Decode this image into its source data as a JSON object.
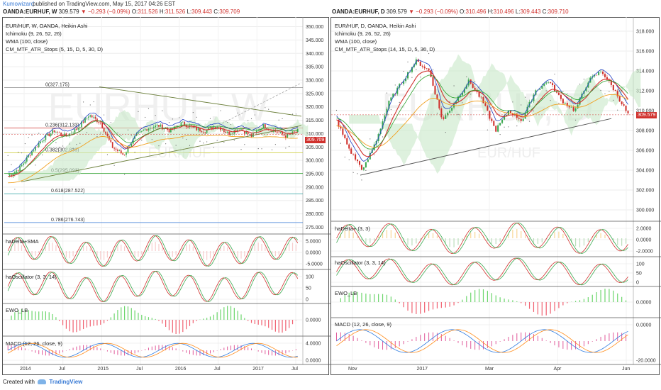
{
  "header": {
    "author": "Kumowizard",
    "published": "published on TradingView.com, May 15, 2017 04:26 EST"
  },
  "footer": {
    "created_with": "Created with",
    "brand": "TradingView"
  },
  "colors": {
    "up": "#3aa84f",
    "down": "#d0312d",
    "kijun": "#d0312d",
    "tenkan": "#1f3fc4",
    "wma": "#f0a020",
    "cloud_up": "#c8e8c8",
    "cloud_down": "#f5d6d6",
    "green_line": "#2aa02a",
    "orange_line": "#ff8c1a",
    "macd_line": "#2d7be0"
  },
  "left": {
    "quote": {
      "symbol": "OANDA:EURHUF, W",
      "last": "309.579",
      "change": "−0.293 (−0.09%)",
      "o_label": "O:",
      "o": "311.526",
      "h_label": "H:",
      "h": "311.526",
      "l_label": "L:",
      "l": "309.443",
      "c_label": "C:",
      "c": "309.709"
    },
    "legend": [
      "EUR/HUF, W, OANDA, Heikin Ashi",
      "Ichimoku (9, 26, 52, 26)",
      "WMA (100, close)",
      "CM_MTF_ATR_Stops (5, 15, D, 5, 30, D)"
    ],
    "watermark": "EURHUF, W",
    "watermark_sub": "EUR/HUF",
    "price_tag": "309.709",
    "fib_levels": [
      {
        "label": "0(327.175)",
        "price": 327.175,
        "color": "#888888"
      },
      {
        "label": "0.236(312.133)",
        "price": 312.133,
        "color": "#d0312d"
      },
      {
        "label": "0.382(302.833)",
        "price": 302.833,
        "color": "#c9c92a"
      },
      {
        "label": "0.5(295.093)",
        "price": 295.093,
        "color": "#2aa02a"
      },
      {
        "label": "0.618(287.522)",
        "price": 287.522,
        "color": "#2aa0a0"
      },
      {
        "label": "0.786(276.743)",
        "price": 276.743,
        "color": "#3a7bd5"
      }
    ],
    "price_axis": {
      "ticks": [
        "350.000",
        "345.000",
        "340.000",
        "335.000",
        "330.000",
        "325.000",
        "320.000",
        "315.000",
        "310.000",
        "305.000",
        "300.000",
        "295.000",
        "290.000",
        "285.000",
        "280.000",
        "275.000"
      ]
    },
    "time_axis": [
      "2014",
      "Jul",
      "2015",
      "Jul",
      "2016",
      "Jul",
      "2017",
      "Jul"
    ],
    "indicators": [
      {
        "label": "haDelta+SMA",
        "ticks": [
          "5.0000",
          "0.0000",
          "-5.0000"
        ]
      },
      {
        "label": "haOscillator (3, 3, 14)",
        "ticks": [
          "100",
          "50",
          "0"
        ]
      },
      {
        "label": "EWO_LB",
        "ticks": [
          "0.0000"
        ]
      },
      {
        "label": "MACD (12, 26, close, 9)",
        "ticks": [
          "4.0000",
          "0.0000"
        ]
      }
    ]
  },
  "right": {
    "quote": {
      "symbol": "OANDA:EURHUF, D",
      "last": "309.579",
      "change": "−0.293 (−0.09%)",
      "o_label": "O:",
      "o": "310.496",
      "h_label": "H:",
      "h": "310.496",
      "l_label": "L:",
      "l": "309.443",
      "c_label": "C:",
      "c": "309.710"
    },
    "legend": [
      "EUR/HUF, D, OANDA, Heikin Ashi",
      "Ichimoku (9, 26, 52, 26)",
      "WMA (100, close)",
      "CM_MTF_ATR_Stops (14, 15, D, 5, 30, D)"
    ],
    "watermark": "EURHUF, D",
    "watermark_sub": "EUR/HUF",
    "price_tag": "309.579",
    "price_axis": {
      "ticks": [
        "318.000",
        "316.000",
        "314.000",
        "312.000",
        "310.000",
        "308.000",
        "306.000",
        "304.000",
        "302.000",
        "300.000"
      ]
    },
    "time_axis": [
      "Nov",
      "2017",
      "Mar",
      "Apr",
      "Jun"
    ],
    "indicators": [
      {
        "label": "haDelta+ (3, 3)",
        "ticks": [
          "2.0000",
          "0.0000",
          "-2.0000"
        ]
      },
      {
        "label": "haOscillator (3, 3, 14)",
        "ticks": [
          "100",
          "50",
          "0"
        ]
      },
      {
        "label": "EWO_LB",
        "ticks": [
          "0.0000"
        ]
      },
      {
        "label": "MACD (12, 26, close, 9)",
        "ticks": [
          "0.0000",
          "-20.0000"
        ]
      }
    ]
  },
  "chart_data": [
    {
      "type": "candlestick",
      "title": "EUR/HUF, W, OANDA, Heikin Ashi",
      "x": [
        "2014",
        "Jul",
        "2015",
        "Jul",
        "2016",
        "Jul",
        "2017",
        "Jul"
      ],
      "ylim": [
        273,
        352
      ],
      "close_path": [
        294,
        297,
        303,
        308,
        311,
        309,
        312,
        317,
        314,
        305,
        302,
        309,
        312,
        313,
        311,
        314,
        312,
        311,
        313,
        310,
        312,
        309,
        313,
        311,
        309,
        311
      ],
      "last": 309.709
    },
    {
      "type": "candlestick",
      "title": "EUR/HUF, D, OANDA, Heikin Ashi",
      "x": [
        "Nov",
        "2017",
        "Mar",
        "Apr",
        "Jun"
      ],
      "ylim": [
        299,
        319
      ],
      "close_path": [
        309,
        306,
        304,
        307,
        311,
        313,
        315,
        314,
        309,
        311,
        313,
        311,
        308,
        310,
        309,
        312,
        313,
        311,
        310,
        313,
        314,
        312,
        309.6
      ],
      "last": 309.579
    }
  ]
}
